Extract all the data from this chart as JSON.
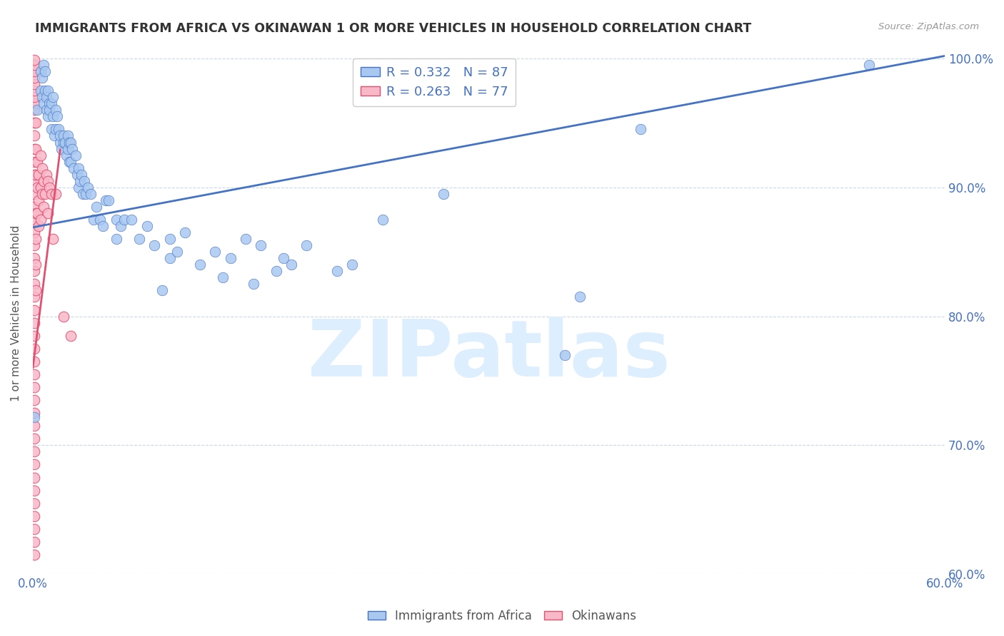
{
  "title": "IMMIGRANTS FROM AFRICA VS OKINAWAN 1 OR MORE VEHICLES IN HOUSEHOLD CORRELATION CHART",
  "source": "Source: ZipAtlas.com",
  "ylabel": "1 or more Vehicles in Household",
  "x_min": 0.0,
  "x_max": 0.6,
  "y_min": 0.6,
  "y_max": 1.005,
  "x_ticks": [
    0.0,
    0.1,
    0.2,
    0.3,
    0.4,
    0.5,
    0.6
  ],
  "y_ticks": [
    0.6,
    0.7,
    0.8,
    0.9,
    1.0
  ],
  "y_tick_labels": [
    "60.0%",
    "70.0%",
    "80.0%",
    "90.0%",
    "100.0%"
  ],
  "blue_color": "#a8c8f0",
  "pink_color": "#f9b8c8",
  "line_color": "#4472c4",
  "pink_line_color": "#e05070",
  "watermark": "ZIPatlas",
  "watermark_color": "#ddeeff",
  "africa_points": [
    [
      0.001,
      0.722
    ],
    [
      0.003,
      0.96
    ],
    [
      0.005,
      0.99
    ],
    [
      0.005,
      0.975
    ],
    [
      0.006,
      0.985
    ],
    [
      0.006,
      0.97
    ],
    [
      0.007,
      0.965
    ],
    [
      0.007,
      0.995
    ],
    [
      0.008,
      0.975
    ],
    [
      0.008,
      0.99
    ],
    [
      0.009,
      0.97
    ],
    [
      0.009,
      0.96
    ],
    [
      0.01,
      0.955
    ],
    [
      0.01,
      0.975
    ],
    [
      0.011,
      0.965
    ],
    [
      0.011,
      0.96
    ],
    [
      0.012,
      0.945
    ],
    [
      0.012,
      0.965
    ],
    [
      0.013,
      0.955
    ],
    [
      0.013,
      0.97
    ],
    [
      0.014,
      0.94
    ],
    [
      0.015,
      0.96
    ],
    [
      0.015,
      0.945
    ],
    [
      0.016,
      0.955
    ],
    [
      0.017,
      0.945
    ],
    [
      0.018,
      0.935
    ],
    [
      0.018,
      0.94
    ],
    [
      0.019,
      0.93
    ],
    [
      0.02,
      0.935
    ],
    [
      0.02,
      0.94
    ],
    [
      0.021,
      0.935
    ],
    [
      0.022,
      0.925
    ],
    [
      0.023,
      0.94
    ],
    [
      0.023,
      0.93
    ],
    [
      0.024,
      0.935
    ],
    [
      0.024,
      0.92
    ],
    [
      0.025,
      0.935
    ],
    [
      0.025,
      0.92
    ],
    [
      0.026,
      0.93
    ],
    [
      0.027,
      0.915
    ],
    [
      0.028,
      0.925
    ],
    [
      0.029,
      0.91
    ],
    [
      0.03,
      0.915
    ],
    [
      0.03,
      0.9
    ],
    [
      0.031,
      0.905
    ],
    [
      0.032,
      0.91
    ],
    [
      0.033,
      0.895
    ],
    [
      0.034,
      0.905
    ],
    [
      0.035,
      0.895
    ],
    [
      0.036,
      0.9
    ],
    [
      0.038,
      0.895
    ],
    [
      0.04,
      0.875
    ],
    [
      0.042,
      0.885
    ],
    [
      0.044,
      0.875
    ],
    [
      0.046,
      0.87
    ],
    [
      0.048,
      0.89
    ],
    [
      0.05,
      0.89
    ],
    [
      0.055,
      0.875
    ],
    [
      0.055,
      0.86
    ],
    [
      0.058,
      0.87
    ],
    [
      0.06,
      0.875
    ],
    [
      0.065,
      0.875
    ],
    [
      0.07,
      0.86
    ],
    [
      0.075,
      0.87
    ],
    [
      0.08,
      0.855
    ],
    [
      0.085,
      0.82
    ],
    [
      0.09,
      0.86
    ],
    [
      0.09,
      0.845
    ],
    [
      0.095,
      0.85
    ],
    [
      0.1,
      0.865
    ],
    [
      0.11,
      0.84
    ],
    [
      0.12,
      0.85
    ],
    [
      0.125,
      0.83
    ],
    [
      0.13,
      0.845
    ],
    [
      0.14,
      0.86
    ],
    [
      0.145,
      0.825
    ],
    [
      0.15,
      0.855
    ],
    [
      0.16,
      0.835
    ],
    [
      0.165,
      0.845
    ],
    [
      0.17,
      0.84
    ],
    [
      0.18,
      0.855
    ],
    [
      0.2,
      0.835
    ],
    [
      0.21,
      0.84
    ],
    [
      0.23,
      0.875
    ],
    [
      0.27,
      0.895
    ],
    [
      0.35,
      0.77
    ],
    [
      0.36,
      0.815
    ],
    [
      0.4,
      0.945
    ],
    [
      0.55,
      0.995
    ]
  ],
  "okinawa_points": [
    [
      0.001,
      0.615
    ],
    [
      0.001,
      0.625
    ],
    [
      0.001,
      0.91
    ],
    [
      0.001,
      0.92
    ],
    [
      0.001,
      0.93
    ],
    [
      0.001,
      0.94
    ],
    [
      0.001,
      0.95
    ],
    [
      0.001,
      0.96
    ],
    [
      0.001,
      0.965
    ],
    [
      0.001,
      0.97
    ],
    [
      0.001,
      0.975
    ],
    [
      0.001,
      0.98
    ],
    [
      0.001,
      0.985
    ],
    [
      0.001,
      0.99
    ],
    [
      0.001,
      0.995
    ],
    [
      0.001,
      0.999
    ],
    [
      0.001,
      0.905
    ],
    [
      0.001,
      0.895
    ],
    [
      0.001,
      0.885
    ],
    [
      0.001,
      0.875
    ],
    [
      0.001,
      0.865
    ],
    [
      0.001,
      0.855
    ],
    [
      0.001,
      0.845
    ],
    [
      0.001,
      0.835
    ],
    [
      0.001,
      0.825
    ],
    [
      0.001,
      0.815
    ],
    [
      0.001,
      0.805
    ],
    [
      0.001,
      0.795
    ],
    [
      0.001,
      0.785
    ],
    [
      0.001,
      0.775
    ],
    [
      0.001,
      0.765
    ],
    [
      0.001,
      0.755
    ],
    [
      0.001,
      0.745
    ],
    [
      0.001,
      0.735
    ],
    [
      0.001,
      0.725
    ],
    [
      0.001,
      0.715
    ],
    [
      0.001,
      0.705
    ],
    [
      0.001,
      0.695
    ],
    [
      0.001,
      0.685
    ],
    [
      0.001,
      0.675
    ],
    [
      0.001,
      0.665
    ],
    [
      0.001,
      0.655
    ],
    [
      0.001,
      0.645
    ],
    [
      0.001,
      0.635
    ],
    [
      0.002,
      0.91
    ],
    [
      0.002,
      0.93
    ],
    [
      0.002,
      0.95
    ],
    [
      0.002,
      0.88
    ],
    [
      0.002,
      0.86
    ],
    [
      0.002,
      0.84
    ],
    [
      0.002,
      0.82
    ],
    [
      0.003,
      0.9
    ],
    [
      0.003,
      0.92
    ],
    [
      0.003,
      0.88
    ],
    [
      0.004,
      0.91
    ],
    [
      0.004,
      0.89
    ],
    [
      0.004,
      0.87
    ],
    [
      0.005,
      0.9
    ],
    [
      0.005,
      0.925
    ],
    [
      0.005,
      0.875
    ],
    [
      0.006,
      0.895
    ],
    [
      0.006,
      0.915
    ],
    [
      0.007,
      0.905
    ],
    [
      0.007,
      0.885
    ],
    [
      0.008,
      0.895
    ],
    [
      0.009,
      0.91
    ],
    [
      0.01,
      0.905
    ],
    [
      0.01,
      0.88
    ],
    [
      0.011,
      0.9
    ],
    [
      0.012,
      0.895
    ],
    [
      0.013,
      0.86
    ],
    [
      0.015,
      0.895
    ],
    [
      0.02,
      0.8
    ],
    [
      0.025,
      0.785
    ]
  ]
}
